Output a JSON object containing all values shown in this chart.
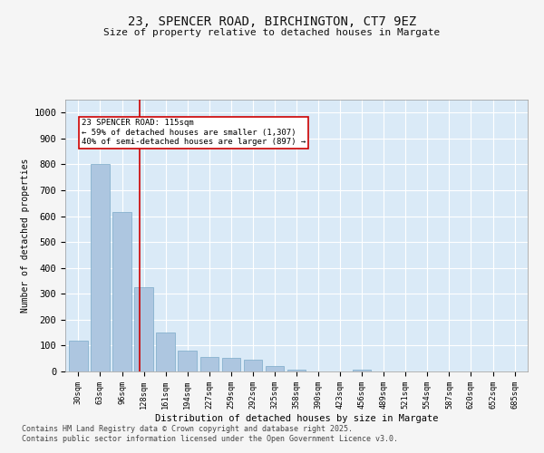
{
  "title_line1": "23, SPENCER ROAD, BIRCHINGTON, CT7 9EZ",
  "title_line2": "Size of property relative to detached houses in Margate",
  "xlabel": "Distribution of detached houses by size in Margate",
  "ylabel": "Number of detached properties",
  "bar_color": "#adc6e0",
  "bar_edge_color": "#7aaac8",
  "background_color": "#daeaf7",
  "grid_color": "#ffffff",
  "annotation_text": "23 SPENCER ROAD: 115sqm\n← 59% of detached houses are smaller (1,307)\n40% of semi-detached houses are larger (897) →",
  "vline_x": 2.82,
  "vline_color": "#cc0000",
  "categories": [
    "30sqm",
    "63sqm",
    "96sqm",
    "128sqm",
    "161sqm",
    "194sqm",
    "227sqm",
    "259sqm",
    "292sqm",
    "325sqm",
    "358sqm",
    "390sqm",
    "423sqm",
    "456sqm",
    "489sqm",
    "521sqm",
    "554sqm",
    "587sqm",
    "620sqm",
    "652sqm",
    "685sqm"
  ],
  "values": [
    120,
    800,
    615,
    325,
    150,
    82,
    55,
    52,
    47,
    20,
    8,
    0,
    0,
    8,
    0,
    0,
    0,
    0,
    0,
    0,
    0
  ],
  "ylim": [
    0,
    1050
  ],
  "yticks": [
    0,
    100,
    200,
    300,
    400,
    500,
    600,
    700,
    800,
    900,
    1000
  ],
  "footnote_line1": "Contains HM Land Registry data © Crown copyright and database right 2025.",
  "footnote_line2": "Contains public sector information licensed under the Open Government Licence v3.0.",
  "fig_bg": "#f5f5f5"
}
